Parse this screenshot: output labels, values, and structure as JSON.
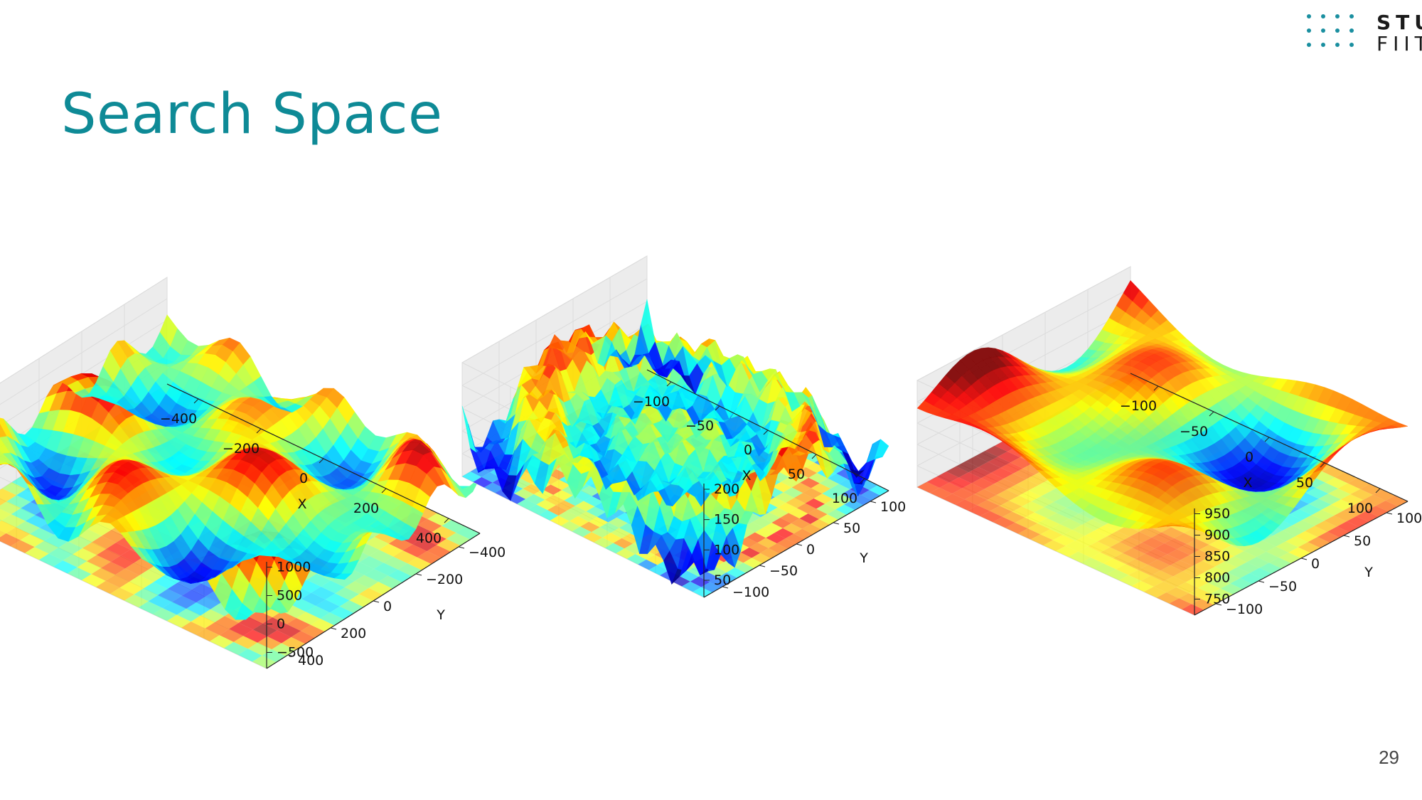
{
  "slide": {
    "title": "Search Space",
    "page_number": "29"
  },
  "logo": {
    "line1": "STU",
    "line2": "FIIT"
  },
  "chart_data": [
    {
      "type": "surface",
      "xlabel": "X",
      "ylabel": "Y",
      "x_ticks": [
        "−400",
        "−200",
        "0",
        "200",
        "400"
      ],
      "y_ticks": [
        "−400",
        "−200",
        "0",
        "200",
        "400"
      ],
      "z_ticks": [
        "1000",
        "500",
        "0",
        "−500"
      ],
      "xlim": [
        -512,
        512
      ],
      "ylim": [
        -512,
        512
      ],
      "zlim": [
        -1000,
        1000
      ],
      "colormap": "jet",
      "contour_floor": true
    },
    {
      "type": "surface",
      "xlabel": "X",
      "ylabel": "Y",
      "x_ticks": [
        "−100",
        "−50",
        "0",
        "50",
        "100"
      ],
      "y_ticks": [
        "100",
        "50",
        "0",
        "−50",
        "−100"
      ],
      "z_ticks": [
        "200",
        "150",
        "100",
        "50"
      ],
      "xlim": [
        -100,
        100
      ],
      "ylim": [
        -100,
        100
      ],
      "zlim": [
        0,
        210
      ],
      "colormap": "jet",
      "contour_floor": true
    },
    {
      "type": "surface",
      "xlabel": "X",
      "ylabel": "Y",
      "x_ticks": [
        "−100",
        "−50",
        "0",
        "50",
        "100"
      ],
      "y_ticks": [
        "100",
        "50",
        "0",
        "−50",
        "−100"
      ],
      "z_ticks": [
        "950",
        "900",
        "850",
        "800",
        "750"
      ],
      "xlim": [
        -100,
        100
      ],
      "ylim": [
        -100,
        100
      ],
      "zlim": [
        720,
        970
      ],
      "colormap": "jet",
      "contour_floor": true
    }
  ]
}
